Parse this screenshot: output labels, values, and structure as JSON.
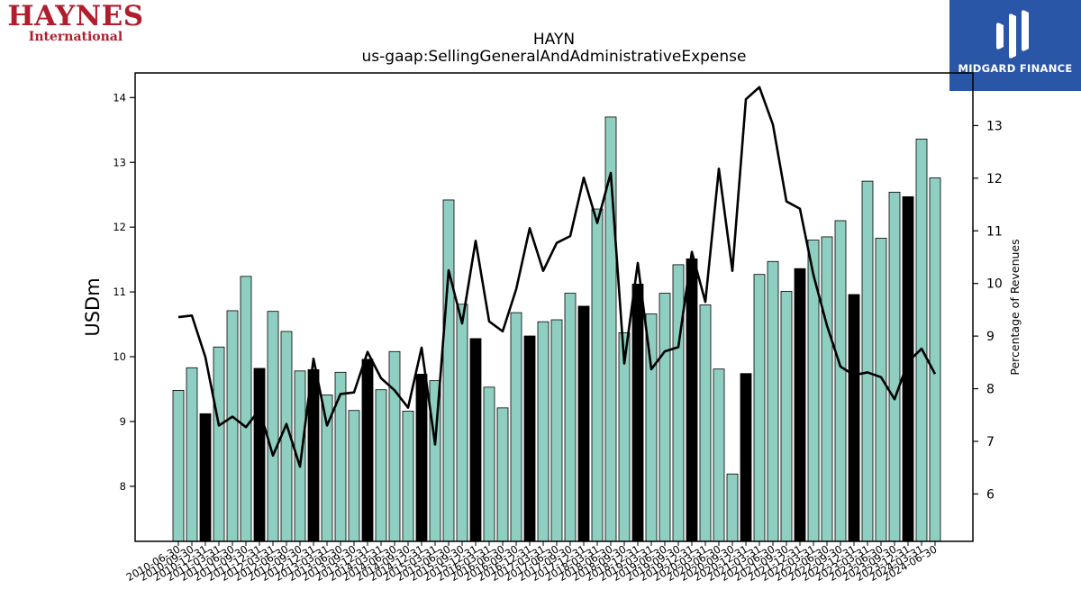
{
  "logos": {
    "company_line1": "HAYNES",
    "company_line2": "International",
    "publisher": "MIDGARD FINANCE"
  },
  "chart_data": {
    "type": "bar",
    "title": "HAYN",
    "subtitle": "us-gaap:SellingGeneralAndAdministrativeExpense",
    "ylabel": "USDm",
    "y2label": "Percentage of Revenues",
    "ylim": [
      7.15,
      14.38
    ],
    "y2lim": [
      5.1,
      14.0
    ],
    "yticks": [
      8,
      9,
      10,
      11,
      12,
      13,
      14
    ],
    "y2ticks": [
      6,
      7,
      8,
      9,
      10,
      11,
      12,
      13
    ],
    "colors": {
      "bar": "#8ecfc1",
      "bar_highlight": "#000000",
      "line": "#000000"
    },
    "x": [
      "2010-06-30",
      "2010-09-30",
      "2010-12-31",
      "2011-03-31",
      "2011-06-30",
      "2011-09-30",
      "2011-12-31",
      "2012-03-31",
      "2012-06-30",
      "2012-09-30",
      "2012-12-31",
      "2013-03-31",
      "2013-06-30",
      "2013-09-30",
      "2013-12-31",
      "2014-03-31",
      "2014-06-30",
      "2014-09-30",
      "2014-12-31",
      "2015-03-31",
      "2015-06-30",
      "2015-09-30",
      "2015-12-31",
      "2016-03-31",
      "2016-06-30",
      "2016-09-30",
      "2016-12-31",
      "2017-03-31",
      "2017-06-30",
      "2017-09-30",
      "2017-12-31",
      "2018-03-31",
      "2018-06-30",
      "2018-09-30",
      "2018-12-31",
      "2019-03-31",
      "2019-06-30",
      "2019-09-30",
      "2019-12-31",
      "2020-03-31",
      "2020-06-30",
      "2020-09-30",
      "2020-12-31",
      "2021-03-31",
      "2021-06-30",
      "2021-09-30",
      "2021-12-31",
      "2022-03-31",
      "2022-06-30",
      "2022-09-30",
      "2022-12-31",
      "2023-03-31",
      "2023-06-30",
      "2023-09-30",
      "2023-12-31",
      "2024-03-31",
      "2024-06-30"
    ],
    "xticklabels": [
      "2010-06-30",
      "2010-09-30",
      "2010-12-31",
      "2011-03-31",
      "2011-06-30",
      "2011-09-30",
      "2011-12-31",
      "2012-03-31",
      "2012-06-30",
      "2012-09-30",
      "2012-12-31",
      "2013-03-31",
      "2013-06-30",
      "2013-09-30",
      "2013-12-31",
      "2014-03-31",
      "2014-06-30",
      "2014-09-30",
      "2014-12-31",
      "2015-03-31",
      "2015-06-30",
      "2015-09-30",
      "2015-12-31",
      "2016-03-31",
      "2016-06-30",
      "2016-09-30",
      "2016-12-31",
      "2017-03-31",
      "2017-06-30",
      "2017-09-30",
      "2017-12-31",
      "2018-03-31",
      "2018-06-30",
      "2018-09-30",
      "2018-12-31",
      "2019-03-31",
      "2019-06-30",
      "2019-09-30",
      "2019-12-31",
      "2020-03-31",
      "2020-06-30",
      "2020-09-30",
      "2020-12-31",
      "2021-03-31",
      "2021-06-30",
      "2021-09-30",
      "2021-12-31",
      "2022-03-31",
      "2022-06-30",
      "2022-09-30",
      "2022-12-31",
      "2023-03-31",
      "2023-06-30",
      "2023-09-30",
      "2023-12-31",
      "2024-03-31",
      "2024-06-30"
    ],
    "bars_usdm": [
      9.48,
      9.83,
      9.12,
      10.15,
      10.71,
      11.24,
      9.82,
      10.7,
      10.39,
      9.78,
      9.8,
      9.41,
      9.76,
      9.17,
      9.96,
      9.49,
      10.08,
      9.16,
      9.73,
      9.63,
      12.42,
      10.81,
      10.28,
      9.53,
      9.21,
      10.68,
      10.32,
      10.54,
      10.57,
      10.98,
      10.78,
      12.28,
      13.7,
      10.37,
      11.12,
      10.66,
      10.98,
      11.42,
      11.51,
      10.8,
      9.81,
      8.19,
      9.74,
      11.27,
      11.47,
      11.01,
      11.36,
      11.8,
      11.85,
      12.1,
      10.96,
      12.71,
      11.83,
      12.54,
      12.47,
      13.36,
      12.76
    ],
    "highlight": [
      false,
      false,
      true,
      false,
      false,
      false,
      true,
      false,
      false,
      false,
      true,
      false,
      false,
      false,
      true,
      false,
      false,
      false,
      true,
      false,
      false,
      false,
      true,
      false,
      false,
      false,
      true,
      false,
      false,
      false,
      true,
      false,
      false,
      false,
      true,
      false,
      false,
      false,
      true,
      false,
      false,
      false,
      true,
      false,
      false,
      false,
      true,
      false,
      false,
      false,
      true,
      false,
      false,
      false,
      true,
      false,
      false
    ],
    "line_pct": [
      9.36,
      9.39,
      8.6,
      7.3,
      7.47,
      7.27,
      7.6,
      6.73,
      7.33,
      6.52,
      8.57,
      7.3,
      7.9,
      7.93,
      8.7,
      8.2,
      7.97,
      7.64,
      8.78,
      6.94,
      10.25,
      9.24,
      10.81,
      9.28,
      9.09,
      9.89,
      11.05,
      10.24,
      10.77,
      10.9,
      12.01,
      11.15,
      12.1,
      8.48,
      10.39,
      8.37,
      8.71,
      8.79,
      10.6,
      9.65,
      12.18,
      10.24,
      13.5,
      13.73,
      13.02,
      11.56,
      11.42,
      10.16,
      9.2,
      8.42,
      8.26,
      8.31,
      8.22,
      7.8,
      8.51,
      8.76,
      8.28
    ]
  }
}
